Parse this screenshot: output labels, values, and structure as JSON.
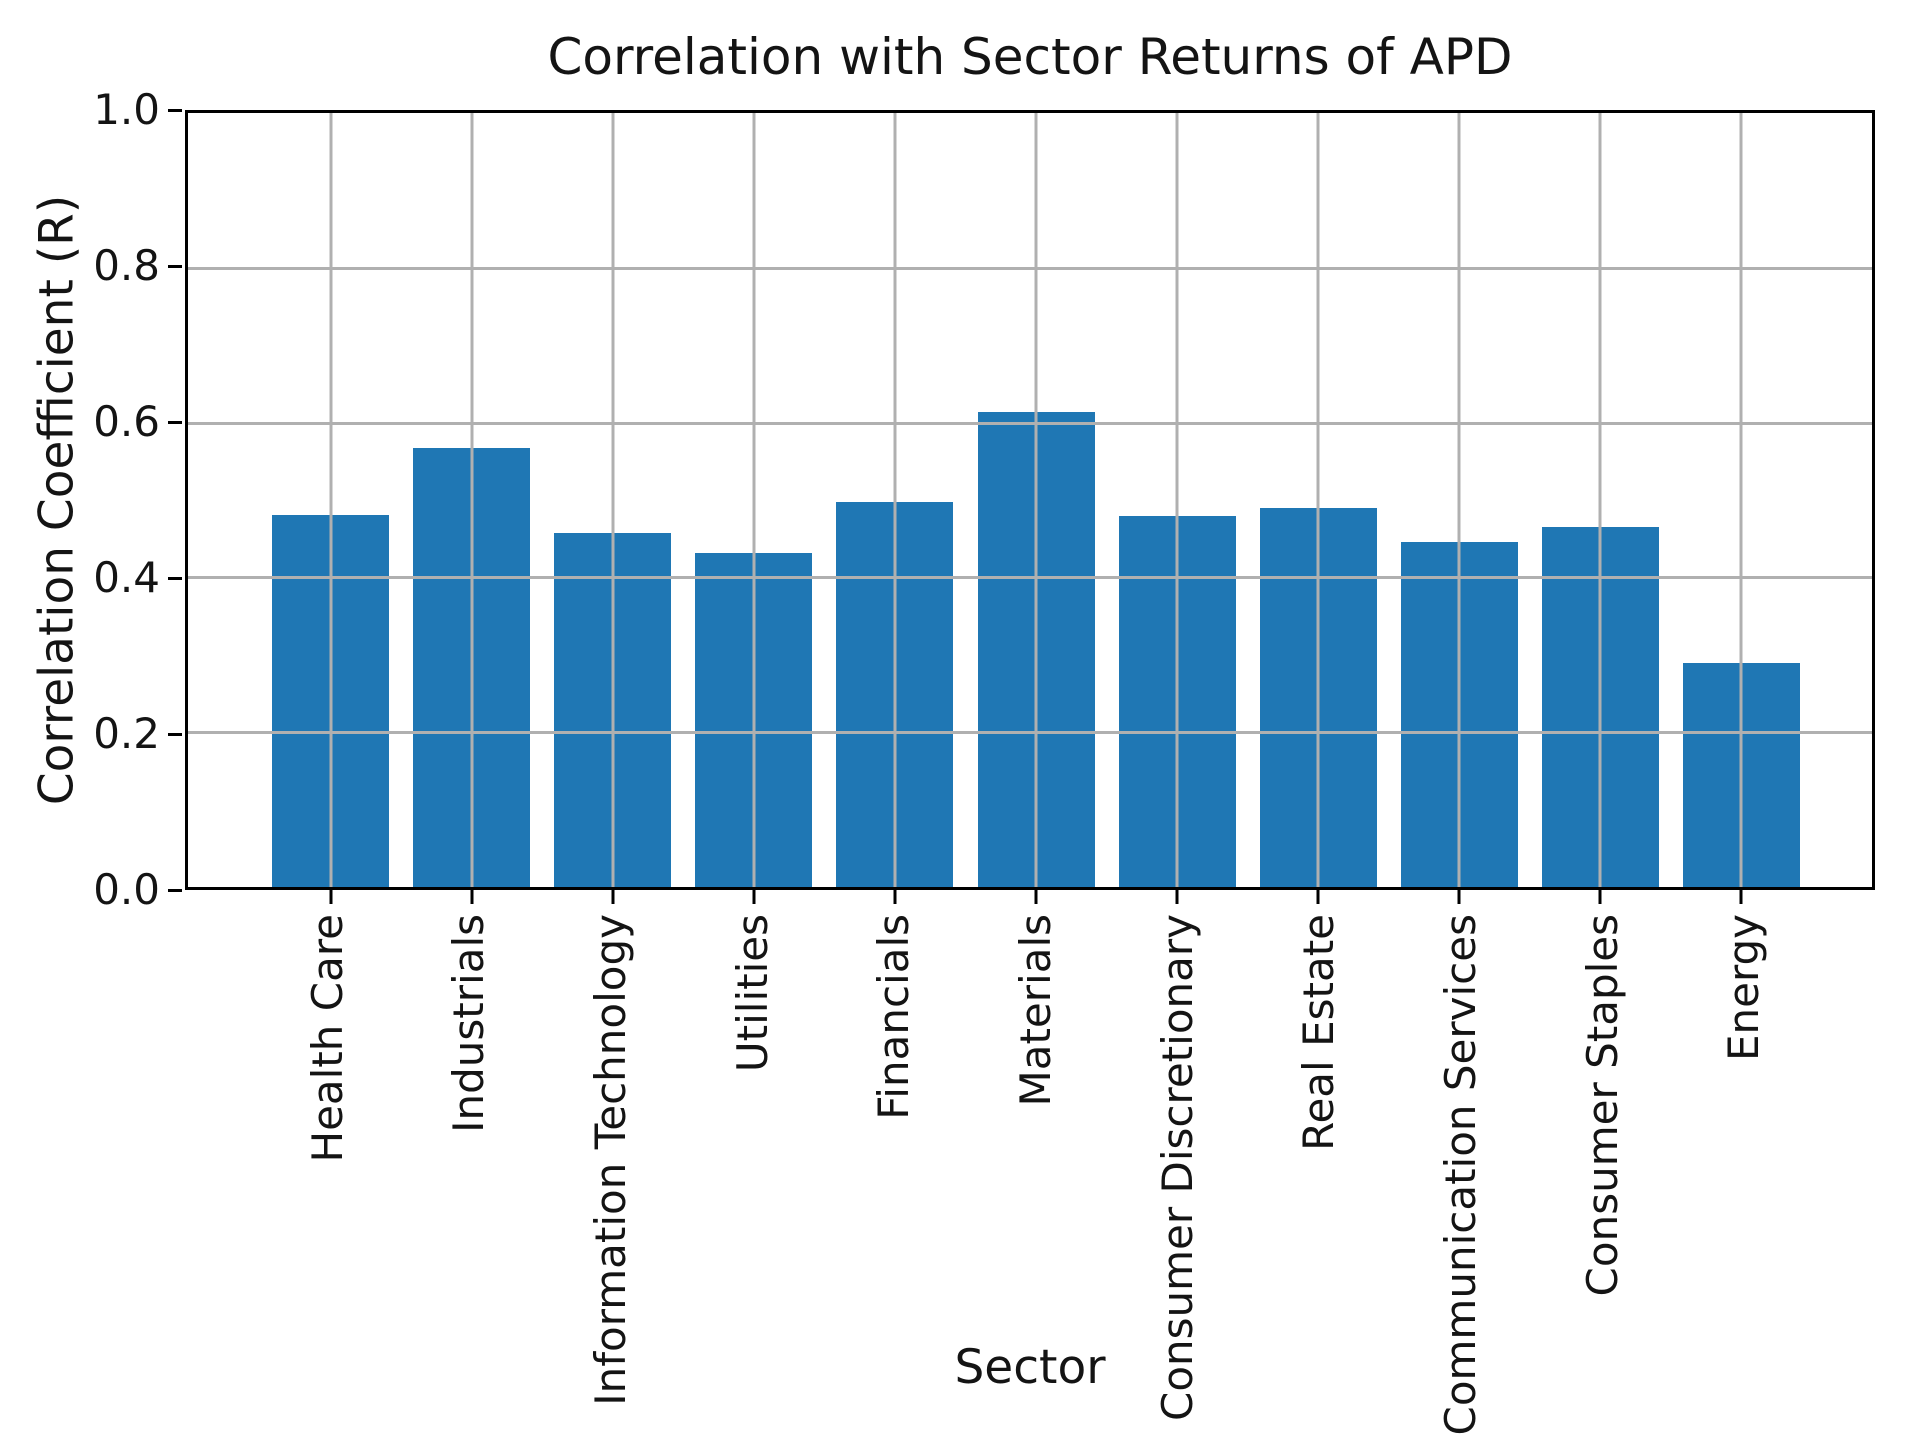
{
  "chart_data": {
    "type": "bar",
    "title": "Correlation with Sector Returns of APD",
    "xlabel": "Sector",
    "ylabel": "Correlation Coefficient (R)",
    "categories": [
      "Health Care",
      "Industrials",
      "Information Technology",
      "Utilities",
      "Financials",
      "Materials",
      "Consumer Discretionary",
      "Real Estate",
      "Communication Services",
      "Consumer Staples",
      "Energy"
    ],
    "values": [
      0.481,
      0.567,
      0.458,
      0.432,
      0.497,
      0.614,
      0.479,
      0.49,
      0.446,
      0.465,
      0.29
    ],
    "ylim": [
      0.0,
      1.0
    ],
    "yticks": [
      0.0,
      0.2,
      0.4,
      0.6,
      0.8,
      1.0
    ],
    "ytick_labels": [
      "0.0",
      "0.2",
      "0.4",
      "0.6",
      "0.8",
      "1.0"
    ],
    "grid": true,
    "legend_position": "none",
    "colors": {
      "bar": "#1f77b4",
      "grid": "#b0b0b0",
      "axis": "#000000",
      "text": "#141414",
      "background": "#ffffff"
    }
  }
}
